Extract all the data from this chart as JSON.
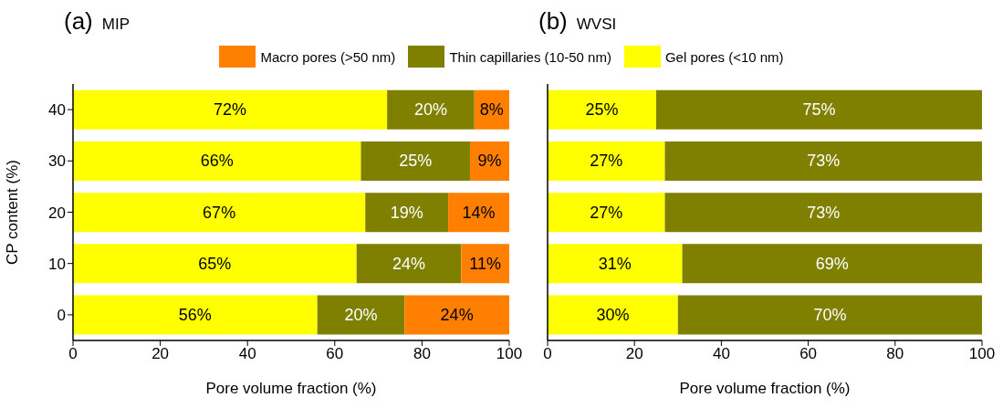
{
  "chart_data": [
    {
      "type": "bar",
      "orientation": "horizontal",
      "stacked": true,
      "title": "(a) MIP",
      "xlabel": "Pore volume fraction (%)",
      "ylabel": "CP content (%)",
      "categories": [
        "40",
        "30",
        "20",
        "10",
        "0"
      ],
      "xlim": [
        0,
        100
      ],
      "xticks": [
        0,
        20,
        40,
        60,
        80,
        100
      ],
      "grid": false,
      "legend": "top",
      "series": [
        {
          "name": "Gel pores (<10 nm)",
          "color": "#ffff00",
          "values": [
            72,
            66,
            67,
            65,
            56
          ],
          "value_labels": [
            "72%",
            "66%",
            "67%",
            "65%",
            "56%"
          ]
        },
        {
          "name": "Thin capillaries (10-50 nm)",
          "color": "#808000",
          "values": [
            20,
            25,
            19,
            24,
            20
          ],
          "value_labels": [
            "20%",
            "25%",
            "19%",
            "24%",
            "20%"
          ]
        },
        {
          "name": "Macro pores (>50 nm)",
          "color": "#ff8000",
          "values": [
            8,
            9,
            14,
            11,
            24
          ],
          "value_labels": [
            "8%",
            "9%",
            "14%",
            "11%",
            "24%"
          ]
        }
      ]
    },
    {
      "type": "bar",
      "orientation": "horizontal",
      "stacked": true,
      "title": "(b) WVSI",
      "xlabel": "Pore volume fraction (%)",
      "categories": [
        "40",
        "30",
        "20",
        "10",
        "0"
      ],
      "xlim": [
        0,
        100
      ],
      "xticks": [
        0,
        20,
        40,
        60,
        80,
        100
      ],
      "grid": false,
      "tick_labels": "x",
      "series": [
        {
          "color": "#ffff00",
          "values": [
            25,
            27,
            27,
            31,
            30
          ],
          "value_labels": [
            "25%",
            "27%",
            "27%",
            "31%",
            "30%"
          ]
        },
        {
          "color": "#808000",
          "values": [
            75,
            73,
            73,
            69,
            70
          ],
          "value_labels": [
            "75%",
            "73%",
            "73%",
            "69%",
            "70%"
          ]
        }
      ]
    }
  ]
}
